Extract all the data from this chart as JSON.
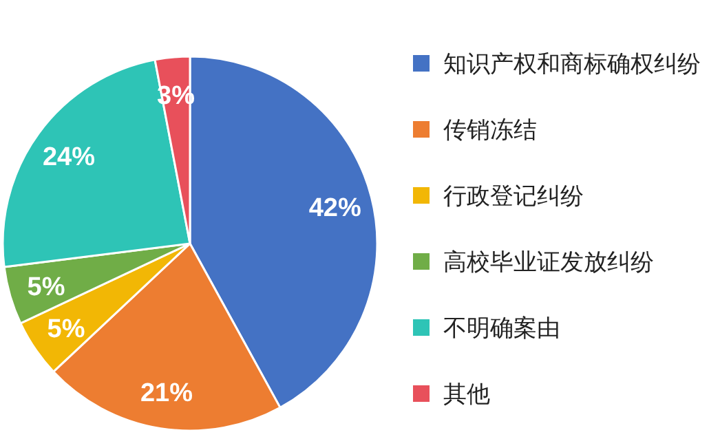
{
  "chart_data": {
    "type": "pie",
    "categories": [
      "知识产权和商标确权纠纷",
      "传销冻结",
      "行政登记纠纷",
      "高校毕业证发放纠纷",
      "不明确案由",
      "其他"
    ],
    "values": [
      42,
      21,
      5,
      5,
      24,
      3
    ],
    "colors": [
      "#4472c4",
      "#ed7d31",
      "#f2b705",
      "#70ad47",
      "#2ec4b6",
      "#e8505b"
    ],
    "value_labels": [
      "42%",
      "21%",
      "5%",
      "5%",
      "24%",
      "3%"
    ],
    "legend": "right"
  }
}
